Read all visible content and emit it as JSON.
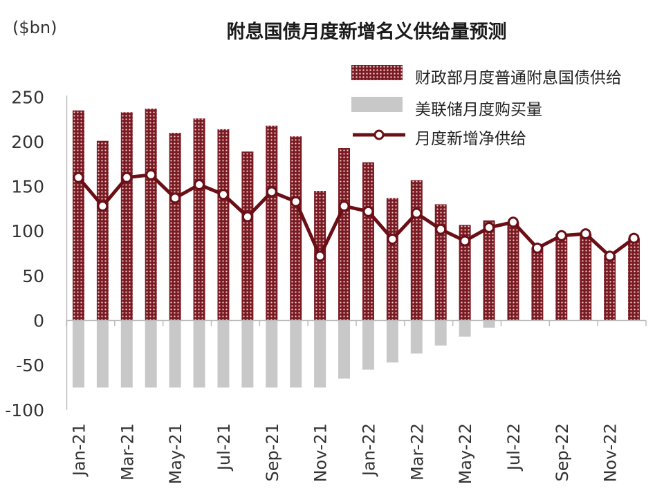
{
  "title": "附息国债月度新增名义供给量预测",
  "unit_label": "($bn)",
  "colors": {
    "supply": "#7a1a22",
    "fed": "#c8c8c8",
    "net": "#6b0f16"
  },
  "chart_data": {
    "type": "bar",
    "title": "附息国债月度新增名义供给量预测",
    "ylabel": "($bn)",
    "ylim": [
      -100,
      250
    ],
    "yticks": [
      250,
      200,
      150,
      100,
      50,
      0,
      -50,
      -100
    ],
    "categories": [
      "Jan-21",
      "Feb-21",
      "Mar-21",
      "Apr-21",
      "May-21",
      "Jun-21",
      "Jul-21",
      "Aug-21",
      "Sep-21",
      "Oct-21",
      "Nov-21",
      "Dec-21",
      "Jan-22",
      "Feb-22",
      "Mar-22",
      "Apr-22",
      "May-22",
      "Jun-22",
      "Jul-22",
      "Aug-22",
      "Sep-22",
      "Oct-22",
      "Nov-22",
      "Dec-22"
    ],
    "xtick_labels": [
      "Jan-21",
      "",
      "Mar-21",
      "",
      "May-21",
      "",
      "Jul-21",
      "",
      "Sep-21",
      "",
      "Nov-21",
      "",
      "Jan-22",
      "",
      "Mar-22",
      "",
      "May-22",
      "",
      "Jul-22",
      "",
      "Sep-22",
      "",
      "Nov-22",
      ""
    ],
    "legend_position": "top-right",
    "series": [
      {
        "name": "财政部月度普通附息国债供给",
        "type": "bar",
        "values": [
          235,
          201,
          233,
          237,
          210,
          226,
          214,
          189,
          218,
          206,
          145,
          193,
          177,
          137,
          157,
          130,
          107,
          112,
          110,
          82,
          97,
          97,
          73,
          92
        ]
      },
      {
        "name": "美联储月度购买量",
        "type": "bar",
        "values": [
          -75,
          -75,
          -75,
          -75,
          -75,
          -75,
          -75,
          -75,
          -75,
          -75,
          -75,
          -65,
          -55,
          -47,
          -37,
          -28,
          -18,
          -8,
          0,
          0,
          0,
          0,
          0,
          0
        ]
      },
      {
        "name": "月度新增净供给",
        "type": "line",
        "values": [
          160,
          128,
          160,
          163,
          137,
          152,
          141,
          116,
          144,
          133,
          72,
          128,
          122,
          91,
          120,
          102,
          89,
          104,
          110,
          81,
          95,
          97,
          72,
          92
        ]
      }
    ]
  }
}
